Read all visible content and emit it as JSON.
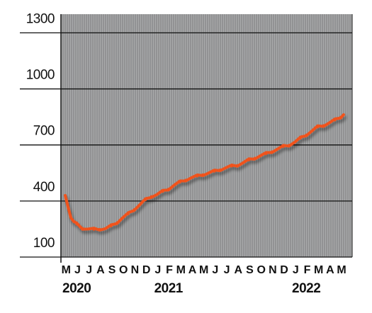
{
  "chart_data": {
    "type": "line",
    "title": "",
    "xlabel": "",
    "ylabel": "",
    "ylim": [
      100,
      1400
    ],
    "yticks": [
      100,
      400,
      700,
      1000,
      1300
    ],
    "ytick_labels": [
      "100",
      "400",
      "700",
      "1000",
      "1300"
    ],
    "grid": true,
    "month_labels": [
      "M",
      "J",
      "J",
      "A",
      "S",
      "O",
      "N",
      "D",
      "J",
      "F",
      "M",
      "A",
      "M",
      "J",
      "J",
      "A",
      "S",
      "O",
      "N",
      "D",
      "J",
      "F",
      "M",
      "A",
      "M"
    ],
    "year_labels": [
      {
        "label": "2020",
        "month_index": 0
      },
      {
        "label": "2021",
        "month_index": 8
      },
      {
        "label": "2022",
        "month_index": 20
      }
    ],
    "colors": {
      "line": "#f0531c",
      "plot_background": "#a9aaab",
      "minor_grid": "#6e6f70",
      "major_grid": "#111111"
    },
    "series": [
      {
        "name": "",
        "x": [
          0,
          0.25,
          0.5,
          0.75,
          1,
          1.5,
          2,
          2.5,
          3,
          3.5,
          4,
          4.5,
          5,
          5.5,
          6,
          6.5,
          7,
          7.5,
          8,
          8.5,
          9,
          9.5,
          10,
          10.5,
          11,
          11.5,
          12,
          12.5,
          13,
          13.5,
          14,
          14.5,
          15,
          15.5,
          16,
          16.5,
          17,
          17.5,
          18,
          18.5,
          19,
          19.5,
          20,
          20.5,
          21,
          21.5,
          22,
          22.5,
          23,
          23.5,
          24,
          24.25
        ],
        "values": [
          430,
          360,
          315,
          290,
          275,
          255,
          250,
          247,
          250,
          252,
          265,
          285,
          310,
          330,
          355,
          380,
          405,
          425,
          435,
          450,
          465,
          485,
          500,
          513,
          525,
          532,
          542,
          550,
          558,
          568,
          578,
          585,
          592,
          605,
          618,
          630,
          642,
          652,
          665,
          678,
          690,
          700,
          715,
          735,
          755,
          775,
          795,
          805,
          818,
          832,
          850,
          862
        ]
      }
    ]
  }
}
